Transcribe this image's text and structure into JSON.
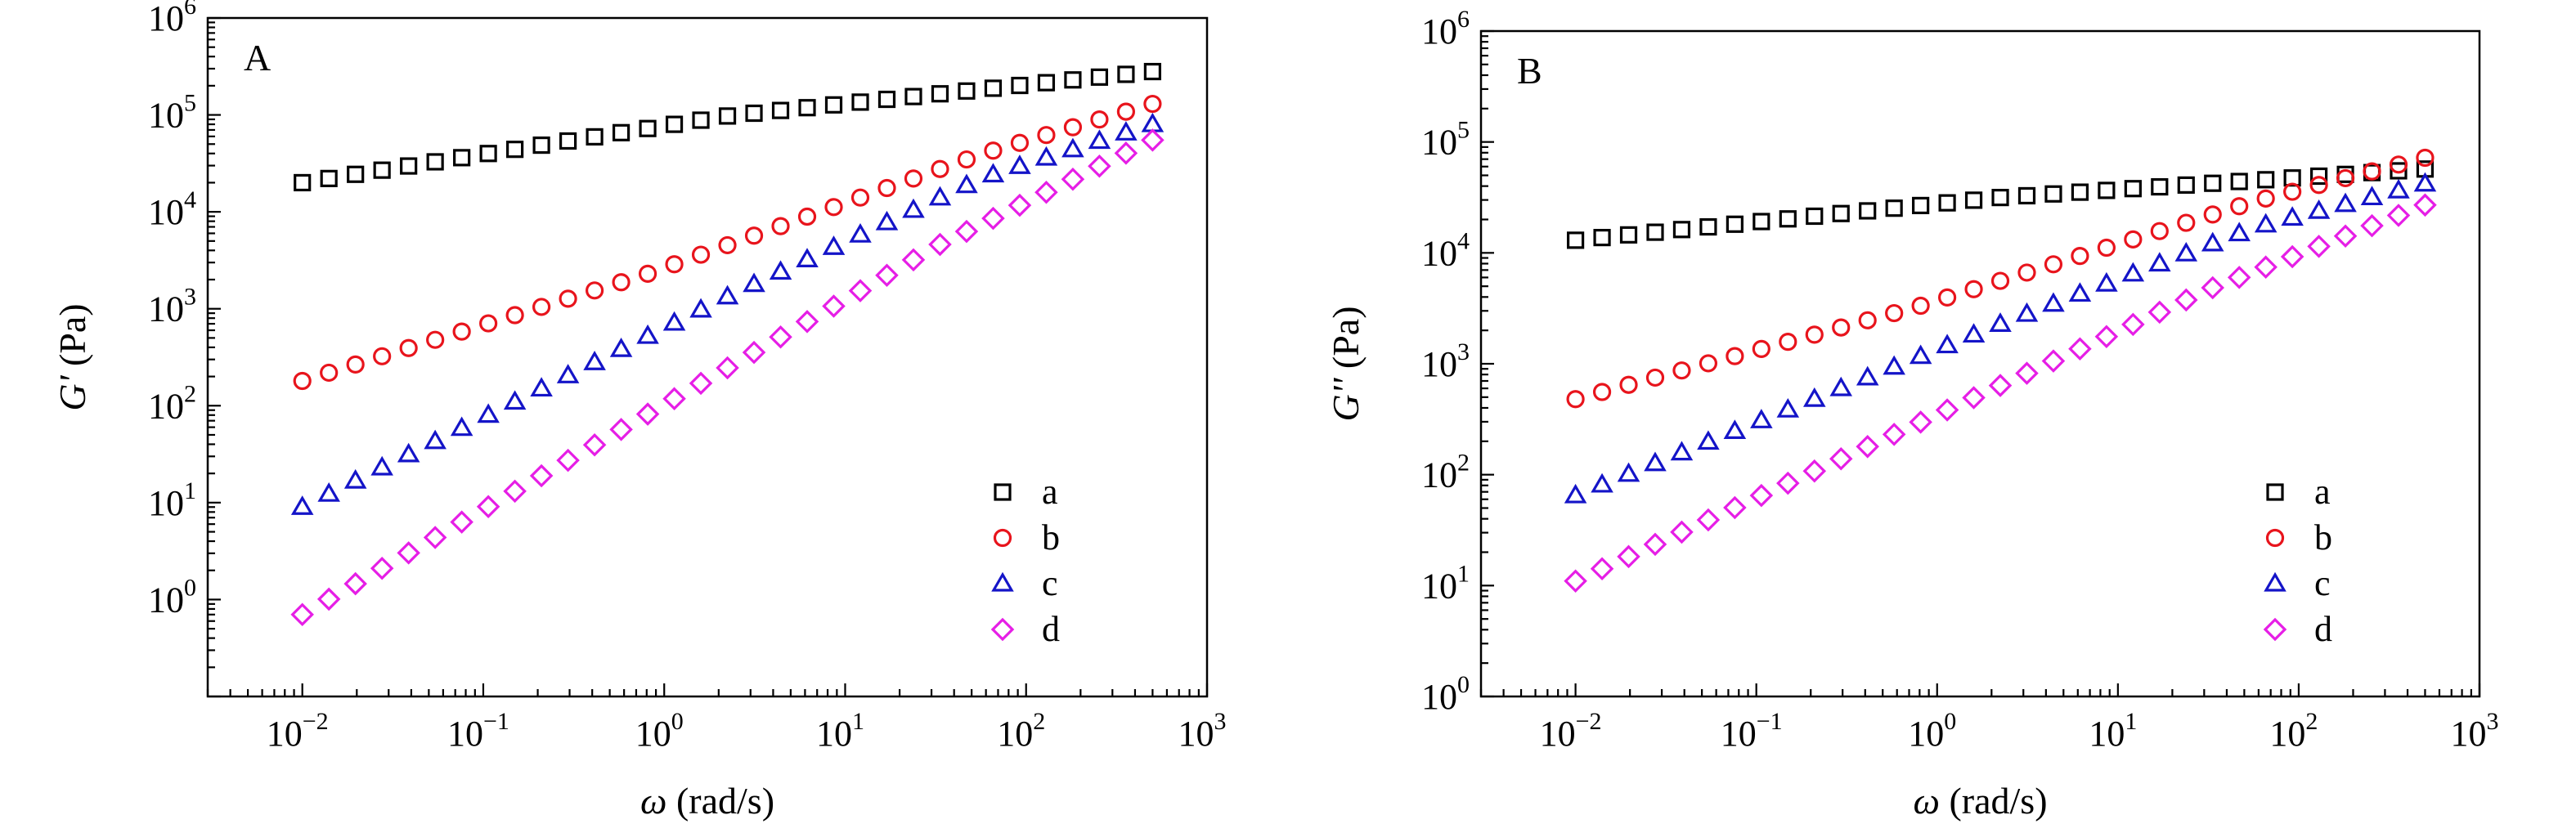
{
  "chart_data": [
    {
      "type": "scatter",
      "panel_label": "A",
      "xlabel_symbol": "ω",
      "xlabel_unit": " (rad/s)",
      "ylabel_symbol": "G'",
      "ylabel_unit": " (Pa)",
      "x_scale": "log",
      "y_scale": "log",
      "xlim": [
        0.003,
        1000
      ],
      "ylim": [
        0.1,
        1000000
      ],
      "x_ticks": [
        0.01,
        0.1,
        1,
        10,
        100,
        1000
      ],
      "x_tick_exponents": [
        "−2",
        "−1",
        "0",
        "1",
        "2",
        "3"
      ],
      "y_ticks": [
        1,
        10,
        100,
        1000,
        10000,
        100000,
        1000000
      ],
      "y_tick_exponents": [
        "0",
        "1",
        "2",
        "3",
        "4",
        "5",
        "6"
      ],
      "tick_base": "10",
      "grid": false,
      "legend_position": "bottom-right",
      "series": [
        {
          "name": "a",
          "marker": "square",
          "color": "#000000",
          "x_range": [
            0.01,
            500
          ],
          "y_range": [
            20000,
            280000
          ],
          "n": 33,
          "curve": "concave"
        },
        {
          "name": "b",
          "marker": "circle",
          "color": "#e8141c",
          "x_range": [
            0.01,
            500
          ],
          "y_range": [
            180,
            130000
          ],
          "n": 33,
          "curve": "convex-shoulder"
        },
        {
          "name": "c",
          "marker": "triangle",
          "color": "#1414c8",
          "x_range": [
            0.01,
            500
          ],
          "y_range": [
            9,
            80000
          ],
          "n": 33,
          "curve": "sigmoid"
        },
        {
          "name": "d",
          "marker": "diamond",
          "color": "#e61ee6",
          "x_range": [
            0.01,
            500
          ],
          "y_range": [
            0.7,
            55000
          ],
          "n": 33,
          "curve": "linear-then-bend"
        }
      ]
    },
    {
      "type": "scatter",
      "panel_label": "B",
      "xlabel_symbol": "ω",
      "xlabel_unit": " (rad/s)",
      "ylabel_symbol": "G''",
      "ylabel_unit": " (Pa)",
      "x_scale": "log",
      "y_scale": "log",
      "xlim": [
        0.003,
        1000
      ],
      "ylim": [
        1,
        1000000
      ],
      "x_ticks": [
        0.01,
        0.1,
        1,
        10,
        100,
        1000
      ],
      "x_tick_exponents": [
        "−2",
        "−1",
        "0",
        "1",
        "2",
        "3"
      ],
      "y_ticks": [
        1,
        10,
        100,
        1000,
        10000,
        100000,
        1000000
      ],
      "y_tick_exponents": [
        "0",
        "1",
        "2",
        "3",
        "4",
        "5",
        "6"
      ],
      "tick_base": "10",
      "grid": false,
      "legend_position": "bottom-right",
      "series": [
        {
          "name": "a",
          "marker": "square",
          "color": "#000000",
          "x_range": [
            0.01,
            500
          ],
          "y_range": [
            13000,
            57000
          ],
          "n": 33,
          "curve": "concave"
        },
        {
          "name": "b",
          "marker": "circle",
          "color": "#e8141c",
          "x_range": [
            0.01,
            500
          ],
          "y_range": [
            480,
            72000
          ],
          "n": 33,
          "curve": "convex-shoulder"
        },
        {
          "name": "c",
          "marker": "triangle",
          "color": "#1414c8",
          "x_range": [
            0.01,
            500
          ],
          "y_range": [
            65,
            42000
          ],
          "n": 33,
          "curve": "sigmoid"
        },
        {
          "name": "d",
          "marker": "diamond",
          "color": "#e61ee6",
          "x_range": [
            0.01,
            500
          ],
          "y_range": [
            11,
            27000
          ],
          "n": 33,
          "curve": "linear-then-bend"
        }
      ]
    }
  ]
}
